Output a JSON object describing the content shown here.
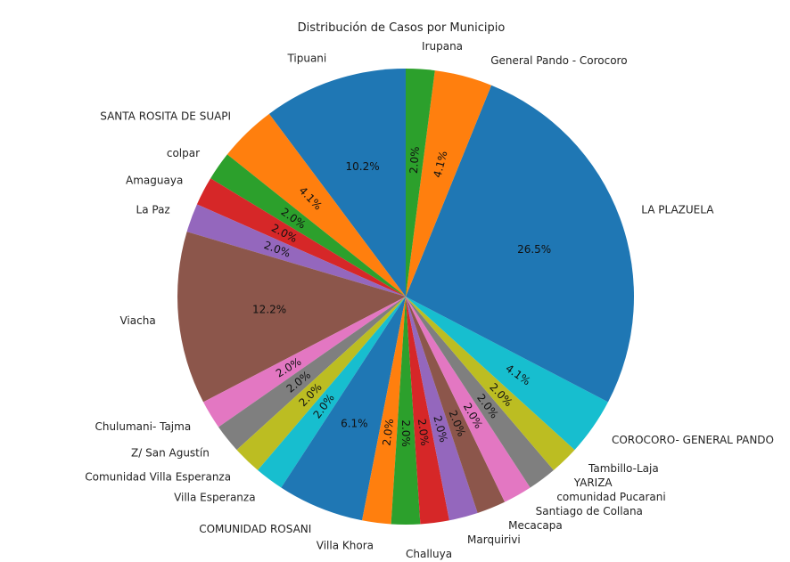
{
  "chart_data": {
    "type": "pie",
    "title": "Distribución de Casos por Municipio",
    "start_angle_deg": 90,
    "direction": "counterclockwise",
    "colors": [
      "#1f77b4",
      "#ff7f0e",
      "#2ca02c",
      "#d62728",
      "#9467bd",
      "#8c564b",
      "#e377c2",
      "#7f7f7f",
      "#bcbd22",
      "#17becf"
    ],
    "labels": [
      "Tipuani",
      "SANTA ROSITA DE SUAPI",
      "colpar",
      "Amaguaya",
      "La Paz",
      "Viacha",
      "Chulumani- Tajma",
      "Z/ San Agustín",
      "Comunidad Villa Esperanza",
      "Villa Esperanza",
      "COMUNIDAD ROSANI",
      "Villa Khora",
      "Challuya",
      "Marquirivi",
      "Mecacapa",
      "Santiago de Collana",
      "comunidad Pucarani",
      "YARIZA",
      "Tambillo-Laja",
      "COROCORO- GENERAL PANDO",
      "LA PLAZUELA",
      "General Pando - Corocoro",
      "Irupana"
    ],
    "values": [
      5,
      2,
      1,
      1,
      1,
      6,
      1,
      1,
      1,
      1,
      3,
      1,
      1,
      1,
      1,
      1,
      1,
      1,
      1,
      2,
      13,
      2,
      1
    ],
    "percent_labels": [
      "10.2%",
      "4.1%",
      "2.0%",
      "2.0%",
      "2.0%",
      "12.2%",
      "2.0%",
      "2.0%",
      "2.0%",
      "2.0%",
      "6.1%",
      "2.0%",
      "2.0%",
      "2.0%",
      "2.0%",
      "2.0%",
      "2.0%",
      "2.0%",
      "2.0%",
      "4.1%",
      "26.5%",
      "4.1%",
      "2.0%"
    ]
  }
}
